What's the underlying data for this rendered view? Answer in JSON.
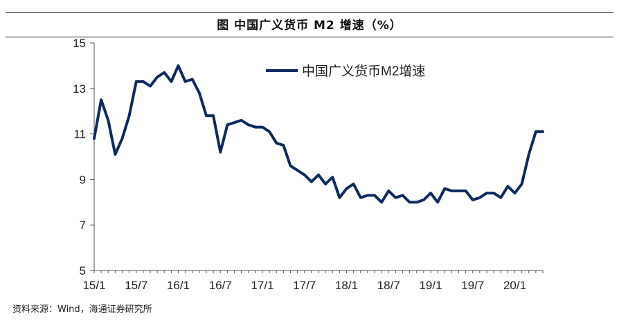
{
  "title": "图  中国广义货币 M2 增速（%）",
  "source": "资料来源：Wind，海通证券研究所",
  "colors": {
    "line": "#0e2a5e",
    "axis": "#555555",
    "text": "#222222"
  },
  "chart_data": {
    "type": "line",
    "title": "图  中国广义货币 M2 增速（%）",
    "xlabel": "",
    "ylabel": "",
    "ylim": [
      5,
      15
    ],
    "yticks": [
      "5",
      "7",
      "9",
      "11",
      "13",
      "15"
    ],
    "xtick_labels": [
      "15/1",
      "15/7",
      "16/1",
      "16/7",
      "17/1",
      "17/7",
      "18/1",
      "18/7",
      "19/1",
      "19/7",
      "20/1"
    ],
    "grid": false,
    "legend_position": "top-center",
    "series": [
      {
        "name": "中国广义货币M2增速",
        "x": [
          "15/1",
          "15/2",
          "15/3",
          "15/4",
          "15/5",
          "15/6",
          "15/7",
          "15/8",
          "15/9",
          "15/10",
          "15/11",
          "15/12",
          "16/1",
          "16/2",
          "16/3",
          "16/4",
          "16/5",
          "16/6",
          "16/7",
          "16/8",
          "16/9",
          "16/10",
          "16/11",
          "16/12",
          "17/1",
          "17/2",
          "17/3",
          "17/4",
          "17/5",
          "17/6",
          "17/7",
          "17/8",
          "17/9",
          "17/10",
          "17/11",
          "17/12",
          "18/1",
          "18/2",
          "18/3",
          "18/4",
          "18/5",
          "18/6",
          "18/7",
          "18/8",
          "18/9",
          "18/10",
          "18/11",
          "18/12",
          "19/1",
          "19/2",
          "19/3",
          "19/4",
          "19/5",
          "19/6",
          "19/7",
          "19/8",
          "19/9",
          "19/10",
          "19/11",
          "19/12",
          "20/1",
          "20/2",
          "20/3",
          "20/4",
          "20/5"
        ],
        "values": [
          10.8,
          12.5,
          11.6,
          10.1,
          10.8,
          11.8,
          13.3,
          13.3,
          13.1,
          13.5,
          13.7,
          13.3,
          14.0,
          13.3,
          13.4,
          12.8,
          11.8,
          11.8,
          10.2,
          11.4,
          11.5,
          11.6,
          11.4,
          11.3,
          11.3,
          11.1,
          10.6,
          10.5,
          9.6,
          9.4,
          9.2,
          8.9,
          9.2,
          8.8,
          9.1,
          8.2,
          8.6,
          8.8,
          8.2,
          8.3,
          8.3,
          8.0,
          8.5,
          8.2,
          8.3,
          8.0,
          8.0,
          8.1,
          8.4,
          8.0,
          8.6,
          8.5,
          8.5,
          8.5,
          8.1,
          8.2,
          8.4,
          8.4,
          8.2,
          8.7,
          8.4,
          8.8,
          10.1,
          11.1,
          11.1
        ]
      }
    ]
  }
}
